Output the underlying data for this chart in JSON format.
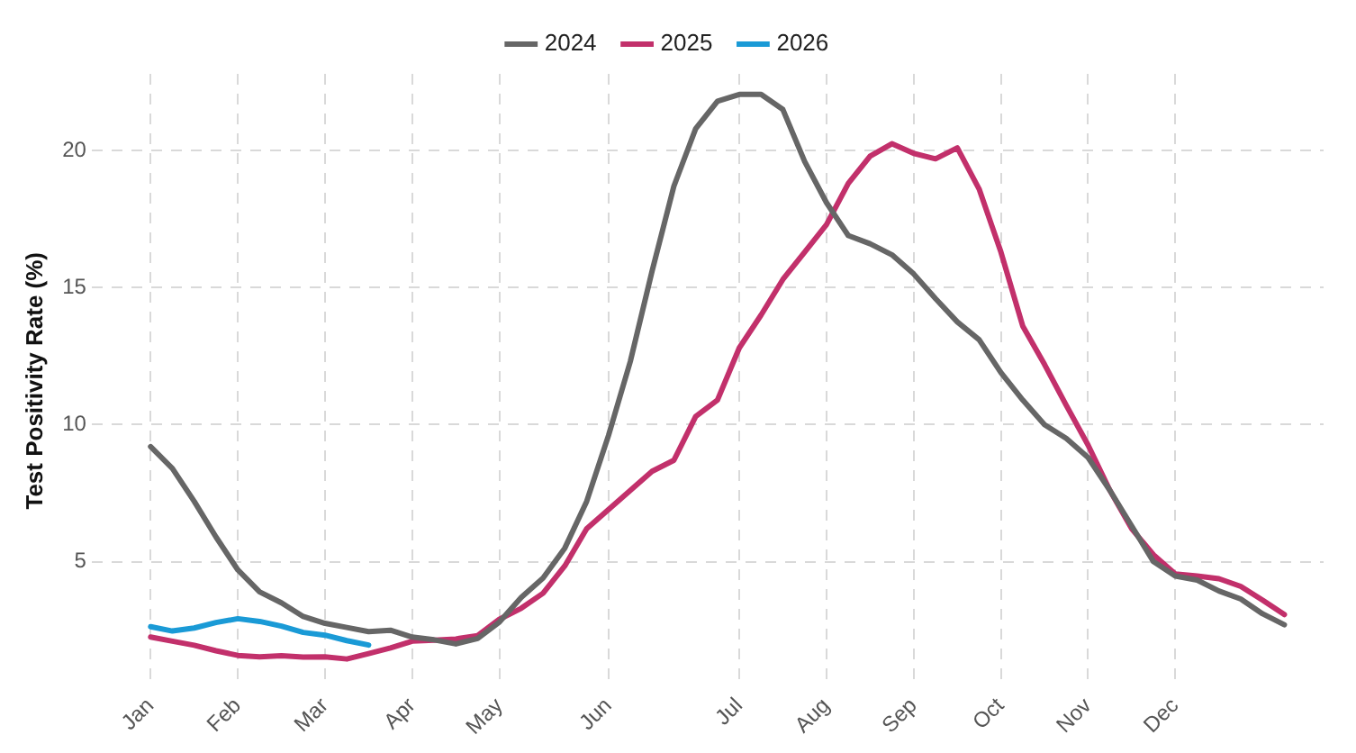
{
  "chart_data": {
    "type": "line",
    "ylabel": "Test Positivity Rate (%)",
    "categories": [
      "Jan",
      null,
      null,
      null,
      "Feb",
      null,
      null,
      null,
      "Mar",
      null,
      null,
      null,
      "Apr",
      null,
      null,
      null,
      "May",
      null,
      null,
      null,
      null,
      "Jun",
      null,
      null,
      null,
      null,
      null,
      "Jul",
      null,
      null,
      null,
      "Aug",
      null,
      null,
      null,
      "Sep",
      null,
      null,
      null,
      "Oct",
      null,
      null,
      null,
      "Nov",
      null,
      null,
      null,
      "Dec",
      null,
      null,
      null,
      null,
      null
    ],
    "series": [
      {
        "name": "2024",
        "color": "#666666",
        "values": [
          9.2,
          8.4,
          7.2,
          5.9,
          4.7,
          3.9,
          3.5,
          3.0,
          2.75,
          2.6,
          2.45,
          2.5,
          2.25,
          2.15,
          2.0,
          2.2,
          2.8,
          3.7,
          4.4,
          5.5,
          7.2,
          9.6,
          12.3,
          15.6,
          18.7,
          20.8,
          21.8,
          22.05,
          22.05,
          21.5,
          19.6,
          18.1,
          16.9,
          16.6,
          16.2,
          15.5,
          14.6,
          13.75,
          13.1,
          11.9,
          10.9,
          10.0,
          9.5,
          8.8,
          7.6,
          6.3,
          5.0,
          4.48,
          4.33,
          3.93,
          3.64,
          3.1,
          2.7
        ]
      },
      {
        "name": "2025",
        "color": "#c2306b",
        "values": [
          2.25,
          2.1,
          1.95,
          1.75,
          1.58,
          1.53,
          1.57,
          1.52,
          1.53,
          1.45,
          1.65,
          1.85,
          2.1,
          2.14,
          2.18,
          2.3,
          2.9,
          3.3,
          3.85,
          4.85,
          6.2,
          6.9,
          7.6,
          8.3,
          8.7,
          10.3,
          10.9,
          12.8,
          14.0,
          15.3,
          16.3,
          17.3,
          18.8,
          19.8,
          20.25,
          19.9,
          19.7,
          20.1,
          18.6,
          16.3,
          13.6,
          12.2,
          10.7,
          9.25,
          7.6,
          6.2,
          5.25,
          4.55,
          4.48,
          4.38,
          4.1,
          3.6,
          3.07
        ]
      },
      {
        "name": "2026",
        "color": "#1a9ad6",
        "values": [
          2.63,
          2.47,
          2.58,
          2.78,
          2.92,
          2.82,
          2.65,
          2.42,
          2.32,
          2.12,
          1.96,
          null,
          null,
          null,
          null,
          null,
          null,
          null,
          null,
          null,
          null,
          null,
          null,
          null,
          null,
          null,
          null,
          null,
          null,
          null,
          null,
          null,
          null,
          null,
          null,
          null,
          null,
          null,
          null,
          null,
          null,
          null,
          null,
          null,
          null,
          null,
          null,
          null,
          null,
          null,
          null,
          null,
          null
        ]
      }
    ],
    "ylim": [
      0.4,
      22.8
    ],
    "yticks": [
      5,
      10,
      15,
      20
    ],
    "grid": true,
    "legend": "top",
    "marker": "none",
    "line_style": "solid"
  }
}
